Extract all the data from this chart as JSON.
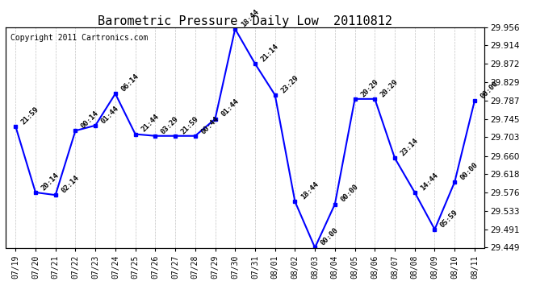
{
  "title": "Barometric Pressure  Daily Low  20110812",
  "copyright": "Copyright 2011 Cartronics.com",
  "x_labels": [
    "07/19",
    "07/20",
    "07/21",
    "07/22",
    "07/23",
    "07/24",
    "07/25",
    "07/26",
    "07/27",
    "07/28",
    "07/29",
    "07/30",
    "07/31",
    "08/01",
    "08/02",
    "08/03",
    "08/04",
    "08/05",
    "08/06",
    "08/07",
    "08/08",
    "08/09",
    "08/10",
    "08/11"
  ],
  "y_values": [
    29.728,
    29.576,
    29.57,
    29.718,
    29.73,
    29.803,
    29.71,
    29.706,
    29.706,
    29.706,
    29.745,
    29.952,
    29.872,
    29.8,
    29.555,
    29.449,
    29.549,
    29.791,
    29.791,
    29.655,
    29.576,
    29.491,
    29.6,
    29.787
  ],
  "point_labels": [
    "21:59",
    "20:14",
    "02:14",
    "00:14",
    "01:44",
    "06:14",
    "21:44",
    "03:29",
    "21:59",
    "00:44",
    "01:44",
    "18:44",
    "21:14",
    "23:29",
    "18:44",
    "00:00",
    "00:00",
    "20:29",
    "20:29",
    "23:14",
    "14:44",
    "05:59",
    "00:00",
    "00:00"
  ],
  "ylim_min": 29.449,
  "ylim_max": 29.956,
  "yticks": [
    29.449,
    29.491,
    29.533,
    29.576,
    29.618,
    29.66,
    29.703,
    29.745,
    29.787,
    29.829,
    29.872,
    29.914,
    29.956
  ],
  "line_color": "blue",
  "marker_color": "blue",
  "bg_color": "white",
  "grid_color": "#aaaaaa",
  "title_fontsize": 11,
  "copyright_fontsize": 7
}
